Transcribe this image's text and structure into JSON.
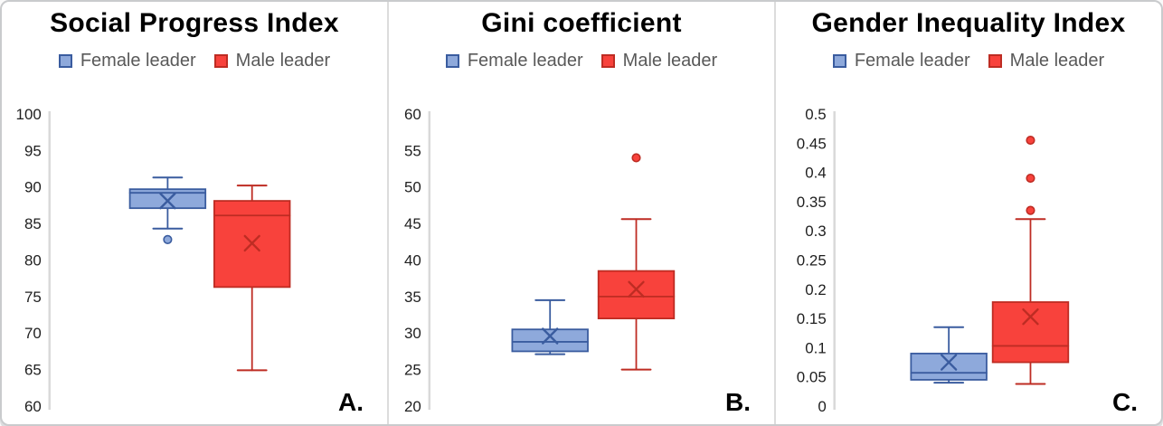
{
  "chart_data": [
    {
      "type": "box",
      "title": "Social Progress Index",
      "panel_label": "A.",
      "legend": [
        {
          "label": "Female leader"
        },
        {
          "label": "Male leader"
        }
      ],
      "legend_position": "top",
      "grid": false,
      "ylim": [
        60,
        100
      ],
      "ytick_labels": [
        "100",
        "95",
        "90",
        "85",
        "80",
        "75",
        "70",
        "65",
        "60"
      ],
      "series": [
        {
          "name": "Female leader",
          "fill": "#8EA9DB",
          "stroke": "#3A5C9F",
          "whisker_low": 84.3,
          "q1": 87.1,
          "median": 89.2,
          "q3": 89.7,
          "whisker_high": 91.3,
          "mean": 88.1,
          "outliers": [
            82.8
          ]
        },
        {
          "name": "Male leader",
          "fill": "#F8423C",
          "stroke": "#BE2C23",
          "whisker_low": 64.9,
          "q1": 76.3,
          "median": 86.1,
          "q3": 88.1,
          "whisker_high": 90.2,
          "mean": 82.3,
          "outliers": []
        }
      ]
    },
    {
      "type": "box",
      "title": "Gini coefficient",
      "panel_label": "B.",
      "legend": [
        {
          "label": "Female leader"
        },
        {
          "label": "Male leader"
        }
      ],
      "legend_position": "top",
      "grid": false,
      "ylim": [
        20,
        60
      ],
      "ytick_labels": [
        "60",
        "55",
        "50",
        "45",
        "40",
        "35",
        "30",
        "25",
        "20"
      ],
      "series": [
        {
          "name": "Female leader",
          "fill": "#8EA9DB",
          "stroke": "#3A5C9F",
          "whisker_low": 27.1,
          "q1": 27.5,
          "median": 28.8,
          "q3": 30.5,
          "whisker_high": 34.5,
          "mean": 29.6,
          "outliers": []
        },
        {
          "name": "Male leader",
          "fill": "#F8423C",
          "stroke": "#BE2C23",
          "whisker_low": 25.0,
          "q1": 32.0,
          "median": 35.0,
          "q3": 38.5,
          "whisker_high": 45.6,
          "mean": 36.0,
          "outliers": [
            54.0
          ]
        }
      ]
    },
    {
      "type": "box",
      "title": "Gender Inequality Index",
      "panel_label": "C.",
      "legend": [
        {
          "label": "Female leader"
        },
        {
          "label": "Male leader"
        }
      ],
      "legend_position": "top",
      "grid": false,
      "ylim": [
        0,
        0.5
      ],
      "ytick_labels": [
        "0.5",
        "0.45",
        "0.4",
        "0.35",
        "0.3",
        "0.25",
        "0.2",
        "0.15",
        "0.1",
        "0.05",
        "0"
      ],
      "series": [
        {
          "name": "Female leader",
          "fill": "#8EA9DB",
          "stroke": "#3A5C9F",
          "whisker_low": 0.04,
          "q1": 0.045,
          "median": 0.057,
          "q3": 0.09,
          "whisker_high": 0.135,
          "mean": 0.075,
          "outliers": []
        },
        {
          "name": "Male leader",
          "fill": "#F8423C",
          "stroke": "#BE2C23",
          "whisker_low": 0.038,
          "q1": 0.075,
          "median": 0.103,
          "q3": 0.178,
          "whisker_high": 0.32,
          "mean": 0.153,
          "outliers": [
            0.455,
            0.39,
            0.335
          ]
        }
      ]
    }
  ],
  "styles": {
    "axis_color": "#D9D9D9",
    "tick_text_color": "#1F1F1F",
    "legend_text_color": "#595959",
    "title_color": "#000000"
  }
}
